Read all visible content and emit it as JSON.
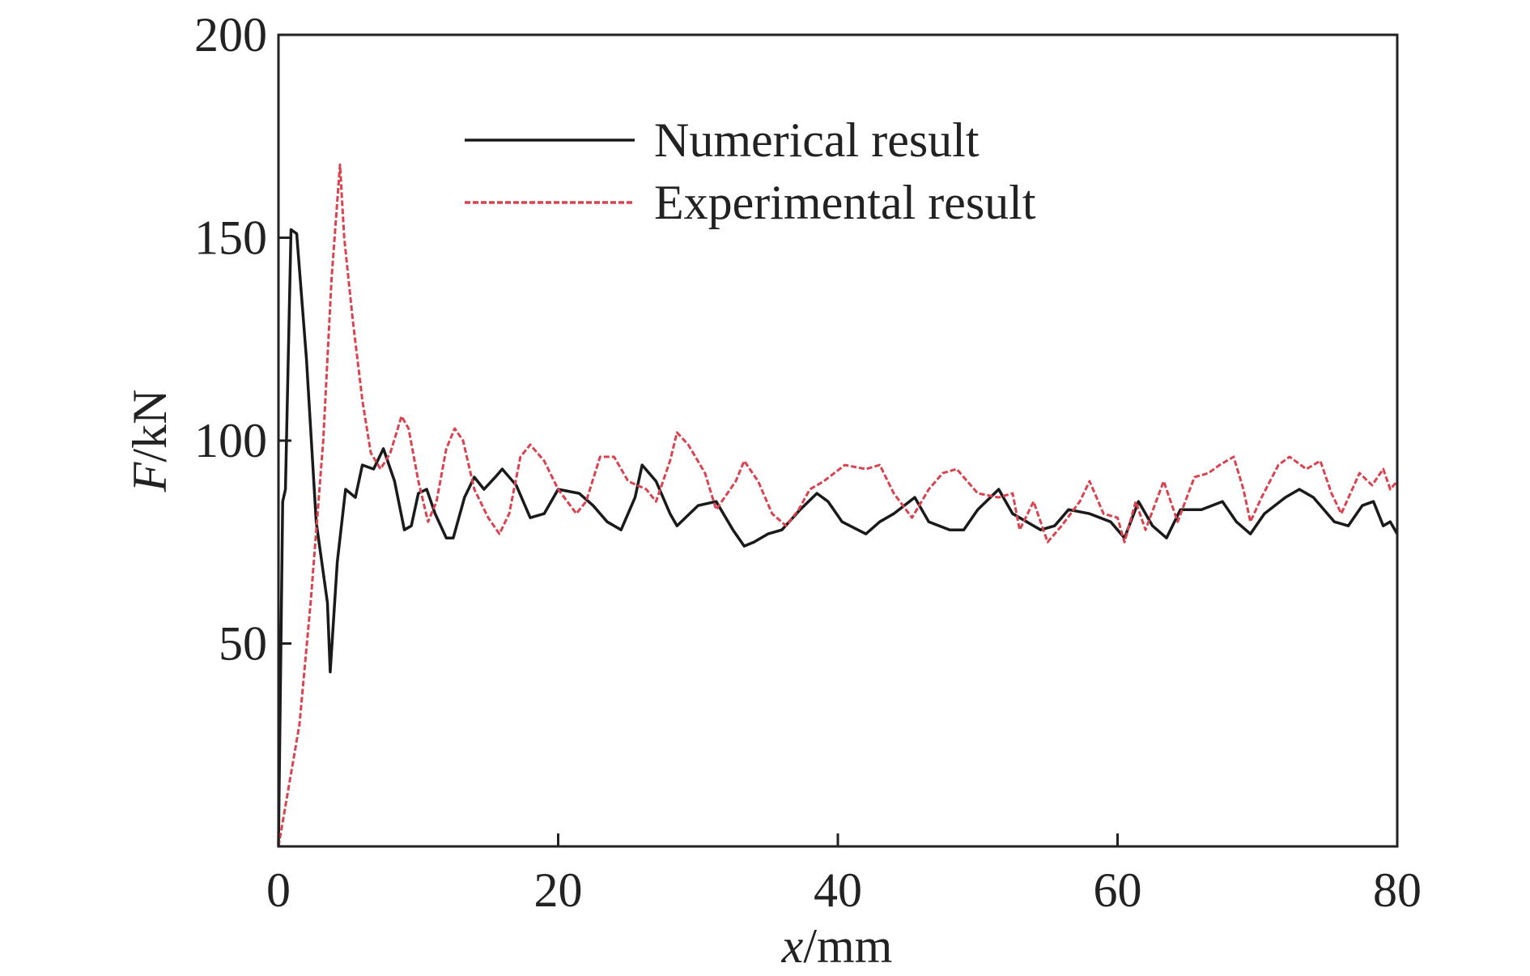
{
  "chart_data": {
    "type": "line",
    "xlabel": "x/mm",
    "ylabel": "F/kN",
    "xlim": [
      0,
      80
    ],
    "ylim": [
      0,
      200
    ],
    "xticks": [
      0,
      20,
      40,
      60,
      80
    ],
    "yticks": [
      50,
      100,
      150,
      200
    ],
    "series": [
      {
        "name": "Numerical result",
        "color": "#1a1a1a",
        "dash": "solid",
        "x": [
          0,
          0.3,
          0.5,
          0.9,
          1.3,
          2,
          2.7,
          3.5,
          3.7,
          4.2,
          4.8,
          5.5,
          6,
          6.8,
          7.5,
          8.3,
          9,
          9.5,
          10,
          10.6,
          11.2,
          12,
          12.5,
          13.3,
          14,
          14.7,
          15.5,
          16,
          17,
          18,
          19,
          20,
          21.5,
          22.5,
          23.5,
          24.5,
          25.5,
          26,
          27,
          28,
          28.5,
          30,
          31.3,
          32.5,
          33.3,
          34,
          35,
          36,
          37.3,
          38.5,
          39.3,
          40.3,
          42,
          43,
          44,
          45.5,
          46.5,
          48,
          49,
          50,
          51.5,
          52.5,
          53.5,
          54.5,
          55.5,
          56.5,
          58,
          59.5,
          60.5,
          61.5,
          62.5,
          63.5,
          64.5,
          66,
          67.5,
          68.5,
          69.5,
          70.5,
          72,
          73,
          74,
          75.5,
          76.5,
          77.5,
          78.3,
          79,
          79.5,
          80
        ],
        "values": [
          0,
          85,
          88,
          152,
          151,
          120,
          80,
          60,
          43,
          70,
          88,
          86,
          94,
          93,
          98,
          90,
          78,
          79,
          87,
          88,
          82,
          76,
          76,
          86,
          91,
          88,
          91,
          93,
          89,
          81,
          82,
          88,
          87,
          84,
          80,
          78,
          86,
          94,
          90,
          82,
          79,
          84,
          85,
          78,
          74,
          75,
          77,
          78,
          83,
          87,
          85,
          80,
          77,
          80,
          82,
          86,
          80,
          78,
          78,
          83,
          88,
          82,
          80,
          78,
          79,
          83,
          82,
          80,
          76,
          85,
          79,
          76,
          83,
          83,
          85,
          80,
          77,
          82,
          86,
          88,
          86,
          80,
          79,
          84,
          85,
          79,
          80,
          77
        ]
      },
      {
        "name": "Experimental result",
        "color": "#d9434f",
        "dash": "dashed",
        "x": [
          0,
          1.5,
          2.3,
          3.2,
          3.8,
          4.4,
          4.7,
          5.3,
          6,
          6.6,
          7.3,
          8,
          8.8,
          9.3,
          10,
          10.7,
          11.3,
          12,
          12.6,
          13.2,
          14,
          15,
          15.8,
          16.5,
          17.3,
          18,
          19,
          20,
          21.3,
          22,
          23,
          24,
          25,
          26.3,
          27,
          28,
          28.5,
          29.3,
          30.5,
          31.3,
          32.7,
          33.3,
          34.3,
          35.3,
          36.3,
          37.2,
          38,
          39,
          40.5,
          42,
          43,
          44,
          45.3,
          46.5,
          47.5,
          48.5,
          50,
          51.5,
          52.5,
          53,
          54,
          55,
          56,
          57.3,
          58,
          59,
          60,
          60.5,
          61.3,
          62,
          63.3,
          64.3,
          65.5,
          66.5,
          67.3,
          68.3,
          69,
          69.5,
          70.3,
          71.5,
          72.3,
          73.5,
          74.5,
          75.3,
          76,
          77.3,
          78.2,
          79,
          79.5,
          80
        ],
        "values": [
          0,
          30,
          60,
          100,
          140,
          168,
          150,
          130,
          110,
          97,
          93,
          97,
          106,
          103,
          90,
          80,
          85,
          98,
          103,
          100,
          88,
          81,
          77,
          82,
          96,
          99,
          95,
          88,
          82,
          85,
          96,
          96,
          90,
          88,
          85,
          95,
          102,
          99,
          92,
          83,
          90,
          95,
          90,
          82,
          79,
          83,
          88,
          90,
          94,
          93,
          94,
          87,
          81,
          88,
          92,
          93,
          87,
          86,
          87,
          78,
          85,
          75,
          79,
          85,
          90,
          82,
          81,
          75,
          85,
          78,
          90,
          80,
          91,
          92,
          94,
          96,
          88,
          80,
          86,
          94,
          96,
          93,
          95,
          87,
          82,
          92,
          89,
          93,
          88,
          90
        ]
      }
    ]
  }
}
